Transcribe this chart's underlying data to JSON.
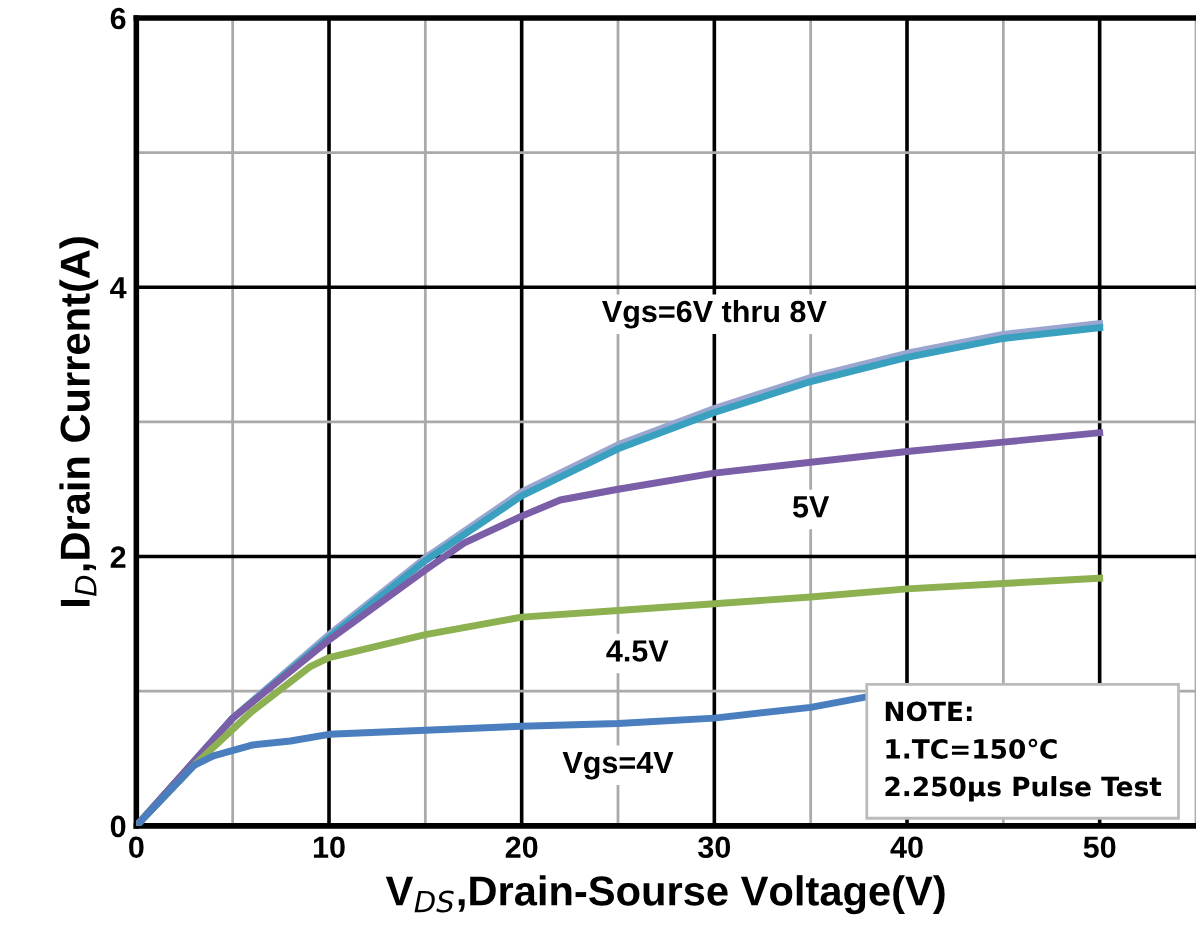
{
  "chart_data": {
    "type": "line",
    "xlabel": "V$_{DS}$,Drain-Sourse Voltage(V)",
    "ylabel": "I$_{D}$,Drain Current(A)",
    "xlim": [
      0,
      55
    ],
    "ylim": [
      0,
      6
    ],
    "xticks": [
      0,
      {
        "value": 5,
        "label": null
      },
      10,
      {
        "value": 15,
        "label": null
      },
      20,
      {
        "value": 25,
        "label": null
      },
      30,
      {
        "value": 35,
        "label": null
      },
      40,
      {
        "value": 45,
        "label": null
      },
      50,
      {
        "value": 55,
        "label": null
      }
    ],
    "yticks": [
      0,
      {
        "value": 1,
        "label": null
      },
      2,
      {
        "value": 3,
        "label": null
      },
      4,
      {
        "value": 5,
        "label": null
      },
      6
    ],
    "grid": true,
    "legend": false,
    "marker": "none",
    "line_style": "solid",
    "series": [
      {
        "color": "#9aa6d0",
        "x": [
          0,
          2.5,
          5,
          10,
          15,
          20,
          25,
          30,
          35,
          40,
          45,
          50
        ],
        "values": [
          0,
          0.4,
          0.8,
          1.42,
          1.99,
          2.48,
          2.83,
          3.1,
          3.33,
          3.51,
          3.65,
          3.73
        ]
      },
      {
        "name": "Vgs=6V thru 8V",
        "color": "#3aa0c0",
        "x": [
          0,
          2.5,
          5,
          10,
          15,
          20,
          25,
          30,
          35,
          40,
          45,
          50
        ],
        "values": [
          0,
          0.4,
          0.8,
          1.4,
          1.97,
          2.45,
          2.8,
          3.07,
          3.3,
          3.48,
          3.62,
          3.7
        ]
      },
      {
        "name": "5V",
        "color": "#7b5ea8",
        "x": [
          0,
          2.5,
          5,
          10,
          15,
          17,
          20,
          22,
          25,
          30,
          35,
          40,
          45,
          50
        ],
        "values": [
          0,
          0.4,
          0.8,
          1.38,
          1.9,
          2.1,
          2.3,
          2.42,
          2.5,
          2.62,
          2.7,
          2.78,
          2.85,
          2.92
        ]
      },
      {
        "name": "4.5V",
        "color": "#8db050",
        "x": [
          0,
          3,
          6,
          9,
          10,
          15,
          20,
          25,
          30,
          35,
          40,
          45,
          50
        ],
        "values": [
          0,
          0.45,
          0.85,
          1.18,
          1.25,
          1.42,
          1.55,
          1.6,
          1.65,
          1.7,
          1.76,
          1.8,
          1.84
        ]
      },
      {
        "name": "Vgs=4V",
        "color": "#4a7ebf",
        "x": [
          0,
          3,
          4,
          6,
          8,
          10,
          15,
          20,
          25,
          30,
          35,
          38
        ],
        "values": [
          0,
          0.45,
          0.52,
          0.6,
          0.63,
          0.68,
          0.71,
          0.74,
          0.76,
          0.8,
          0.88,
          0.96
        ]
      }
    ],
    "annotations": [
      "NOTE:\n1.TC=150℃\n2.250μs Pulse Test"
    ]
  }
}
